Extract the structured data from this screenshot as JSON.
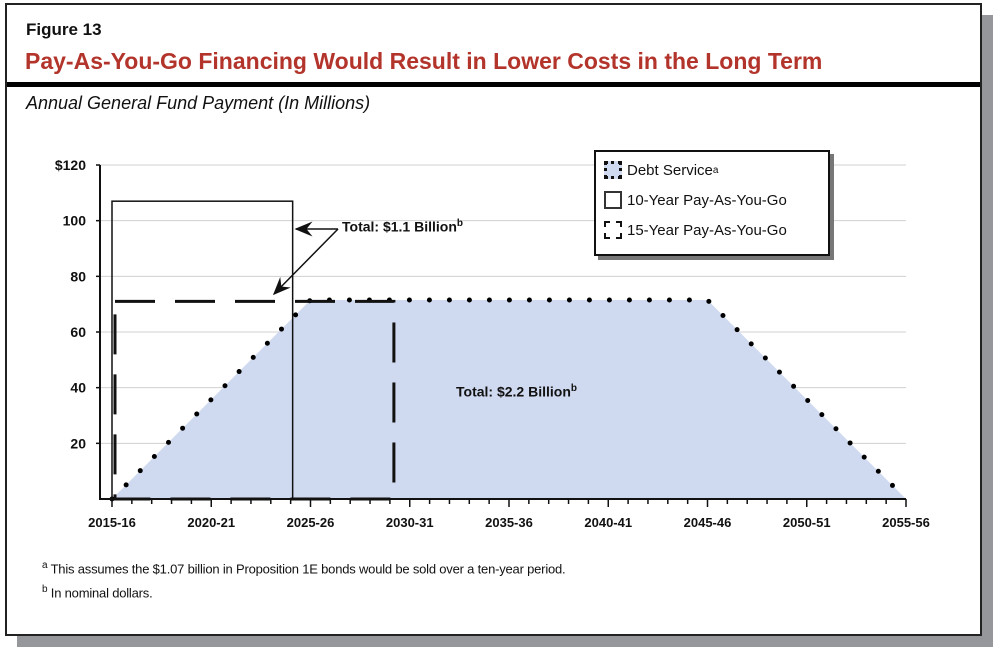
{
  "figure_number": "Figure 13",
  "title": "Pay-As-You-Go Financing Would Result in Lower Costs in the Long Term",
  "subtitle": "Annual General Fund Payment (In Millions)",
  "footnotes": [
    {
      "mark": "a",
      "text": "This assumes the $1.07 billion in Proposition 1E bonds would be sold over a ten-year period."
    },
    {
      "mark": "b",
      "text": "In nominal dollars."
    }
  ],
  "chart_data": {
    "type": "area",
    "ylabel": "",
    "xlabel": "",
    "ylim": [
      0,
      120
    ],
    "y_ticks": [
      {
        "value": 20,
        "label": "20"
      },
      {
        "value": 40,
        "label": "40"
      },
      {
        "value": 60,
        "label": "60"
      },
      {
        "value": 80,
        "label": "80"
      },
      {
        "value": 100,
        "label": "100"
      },
      {
        "value": 120,
        "label": "$120"
      }
    ],
    "x_range": [
      "2015-16",
      "2055-56"
    ],
    "x_tick_labels": [
      "2015-16",
      "2020-21",
      "2025-26",
      "2030-31",
      "2035-36",
      "2040-41",
      "2045-46",
      "2050-51",
      "2055-56"
    ],
    "grid": true,
    "legend_placement": "top-right",
    "colors": {
      "debt_fill": "#cfd9ef",
      "title": "#b3342b",
      "grid": "#d0d0d0"
    },
    "series": [
      {
        "name": "Debt Service",
        "superscript": "a",
        "style": "dotted-area",
        "points": [
          [
            "2015-16",
            0
          ],
          [
            "2025-26",
            71.5
          ],
          [
            "2045-46",
            71.5
          ],
          [
            "2055-56",
            0
          ]
        ]
      },
      {
        "name": "10-Year Pay-As-You-Go",
        "style": "solid-box",
        "start": "2015-16",
        "end": "2024-25",
        "value": 107
      },
      {
        "name": "15-Year Pay-As-You-Go",
        "style": "dashed-box",
        "start": "2015-16",
        "end": "2029-30",
        "value": 71
      }
    ],
    "annotations": [
      {
        "text": "Total: $1.1 Billion",
        "superscript": "b"
      },
      {
        "text": "Total: $2.2 Billion",
        "superscript": "b"
      }
    ]
  }
}
